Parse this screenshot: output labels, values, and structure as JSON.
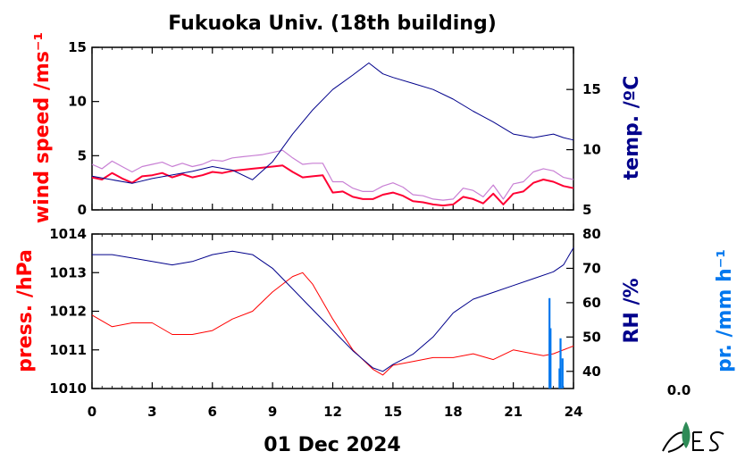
{
  "chart_data": [
    {
      "type": "line",
      "title": "Fukuoka Univ. (18th building)",
      "x_range": [
        0,
        24
      ],
      "x_ticks": [
        "0",
        "3",
        "6",
        "9",
        "12",
        "15",
        "18",
        "21",
        "24"
      ],
      "xlabel": "01 Dec 2024",
      "left_axis": {
        "label": "wind speed /ms⁻¹",
        "range": [
          0,
          15
        ],
        "ticks": [
          "0",
          "5",
          "10",
          "15"
        ],
        "color": "#ff0000"
      },
      "right_axis": {
        "label": "temp. /ºC",
        "range": [
          5,
          18.5
        ],
        "ticks": [
          "5",
          "10",
          "15"
        ],
        "color": "#00008b"
      },
      "series": [
        {
          "axis": "left",
          "color": "#ff0033",
          "style": "wind-mean",
          "x": [
            0,
            0.5,
            1,
            1.5,
            2,
            2.5,
            3,
            3.5,
            4,
            4.5,
            5,
            5.5,
            6,
            6.5,
            7,
            7.5,
            8,
            8.5,
            9,
            9.5,
            10,
            10.5,
            11,
            11.5,
            12,
            12.5,
            13,
            13.5,
            14,
            14.5,
            15,
            15.5,
            16,
            16.5,
            17,
            17.5,
            18,
            18.5,
            19,
            19.5,
            20,
            20.5,
            21,
            21.5,
            22,
            22.5,
            23,
            23.5,
            24
          ],
          "y": [
            3,
            2.8,
            3.4,
            2.9,
            2.5,
            3.1,
            3.2,
            3.4,
            3.0,
            3.3,
            3.0,
            3.2,
            3.5,
            3.4,
            3.6,
            3.7,
            3.8,
            3.9,
            4.0,
            4.1,
            3.5,
            3.0,
            3.1,
            3.2,
            1.6,
            1.7,
            1.2,
            1.0,
            1.0,
            1.4,
            1.6,
            1.3,
            0.8,
            0.7,
            0.5,
            0.4,
            0.5,
            1.2,
            1.0,
            0.6,
            1.5,
            0.5,
            1.5,
            1.7,
            2.5,
            2.8,
            2.6,
            2.2,
            2.0
          ]
        },
        {
          "axis": "left",
          "color": "#c87fd4",
          "style": "wind-gust",
          "x": [
            0,
            0.5,
            1,
            1.5,
            2,
            2.5,
            3,
            3.5,
            4,
            4.5,
            5,
            5.5,
            6,
            6.5,
            7,
            7.5,
            8,
            8.5,
            9,
            9.5,
            10,
            10.5,
            11,
            11.5,
            12,
            12.5,
            13,
            13.5,
            14,
            14.5,
            15,
            15.5,
            16,
            16.5,
            17,
            17.5,
            18,
            18.5,
            19,
            19.5,
            20,
            20.5,
            21,
            21.5,
            22,
            22.5,
            23,
            23.5,
            24
          ],
          "y": [
            4.2,
            3.8,
            4.5,
            4.0,
            3.5,
            4.0,
            4.2,
            4.4,
            4.0,
            4.3,
            4.0,
            4.2,
            4.6,
            4.5,
            4.8,
            4.9,
            5.0,
            5.1,
            5.3,
            5.5,
            4.8,
            4.2,
            4.3,
            4.3,
            2.6,
            2.6,
            2.0,
            1.7,
            1.7,
            2.2,
            2.5,
            2.1,
            1.4,
            1.3,
            1.0,
            0.9,
            1.0,
            2.0,
            1.8,
            1.2,
            2.3,
            1.0,
            2.4,
            2.6,
            3.5,
            3.8,
            3.6,
            3.0,
            2.8
          ]
        },
        {
          "axis": "right",
          "color": "#00008b",
          "name": "temp",
          "x": [
            0,
            1,
            2,
            3,
            4,
            5,
            6,
            7,
            8,
            9,
            10,
            11,
            12,
            13,
            13.8,
            14.5,
            15,
            16,
            17,
            18,
            19,
            20,
            21,
            22,
            23,
            23.5,
            24
          ],
          "y": [
            7.8,
            7.5,
            7.2,
            7.6,
            7.9,
            8.2,
            8.6,
            8.3,
            7.5,
            9.0,
            11.3,
            13.3,
            15.0,
            16.2,
            17.2,
            16.3,
            16.0,
            15.5,
            15.0,
            14.2,
            13.2,
            12.3,
            11.3,
            11.0,
            11.3,
            11.0,
            10.8
          ]
        }
      ]
    },
    {
      "type": "line",
      "x_range": [
        0,
        24
      ],
      "x_ticks": [
        "0",
        "3",
        "6",
        "9",
        "12",
        "15",
        "18",
        "21",
        "24"
      ],
      "left_axis": {
        "label": "press. /hPa",
        "range": [
          1010,
          1014
        ],
        "ticks": [
          "1010",
          "1011",
          "1012",
          "1013",
          "1014"
        ],
        "color": "#ff0000"
      },
      "right_axis": {
        "label": "RH /%",
        "range": [
          35,
          80
        ],
        "ticks": [
          "40",
          "50",
          "60",
          "70",
          "80"
        ],
        "color": "#00008b"
      },
      "series": [
        {
          "axis": "left",
          "color": "#ff0000",
          "name": "press",
          "x": [
            0,
            1,
            2,
            3,
            4,
            5,
            6,
            7,
            8,
            9,
            10,
            10.5,
            11,
            12,
            13,
            14,
            14.5,
            15,
            16,
            17,
            18,
            19,
            20,
            21,
            22,
            22.5,
            23,
            24
          ],
          "y": [
            1011.9,
            1011.6,
            1011.7,
            1011.7,
            1011.4,
            1011.4,
            1011.5,
            1011.8,
            1012.0,
            1012.5,
            1012.9,
            1013.0,
            1012.7,
            1011.8,
            1011.0,
            1010.5,
            1010.35,
            1010.6,
            1010.7,
            1010.8,
            1010.8,
            1010.9,
            1010.75,
            1011.0,
            1010.9,
            1010.85,
            1010.9,
            1011.1
          ]
        },
        {
          "axis": "right",
          "color": "#00008b",
          "name": "RH",
          "x": [
            0,
            1,
            2,
            3,
            4,
            5,
            6,
            7,
            8,
            9,
            10,
            11,
            12,
            13,
            14,
            14.5,
            15,
            16,
            17,
            18,
            19,
            20,
            21,
            22,
            23,
            23.5,
            24
          ],
          "y": [
            74,
            74,
            73,
            72,
            71,
            72,
            74,
            75,
            74,
            70,
            64,
            58,
            52,
            46,
            41,
            40,
            42,
            45,
            50,
            57,
            61,
            63,
            65,
            67,
            69,
            71,
            76
          ]
        },
        {
          "axis": "precip",
          "color": "#0077ee",
          "name": "precip",
          "style": "bars",
          "x": [
            22.8,
            22.85,
            23.3,
            23.35,
            23.45
          ],
          "y": [
            0.9,
            0.6,
            0.2,
            0.5,
            0.3
          ]
        }
      ]
    },
    {
      "type": "line",
      "precip_axis": {
        "label": "pr. /mm h⁻¹",
        "value_label": "0.0",
        "color": "#0077ee"
      }
    }
  ],
  "logo": "UES"
}
